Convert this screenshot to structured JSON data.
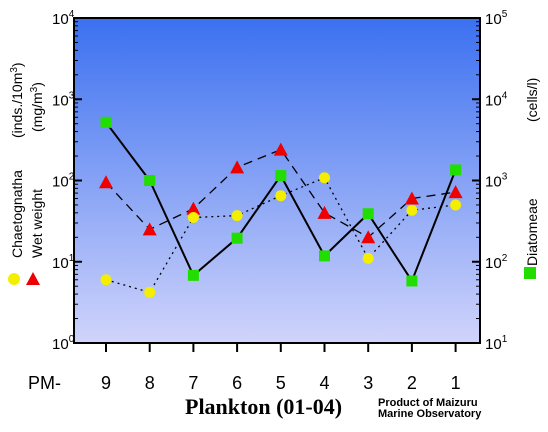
{
  "chart_data": {
    "type": "line",
    "title": "Plankton (01-04)",
    "credit": [
      "Product of Maizuru",
      "Marine Observatory"
    ],
    "x_prefix": "PM-",
    "categories": [
      "9",
      "8",
      "7",
      "6",
      "5",
      "4",
      "3",
      "2",
      "1"
    ],
    "left_axis": {
      "scale": "log",
      "range": [
        1,
        10000
      ],
      "ticks": [
        {
          "base": "10",
          "exp": "0"
        },
        {
          "base": "10",
          "exp": "1"
        },
        {
          "base": "10",
          "exp": "2"
        },
        {
          "base": "10",
          "exp": "3"
        },
        {
          "base": "10",
          "exp": "4"
        }
      ],
      "unit_label_1": "(inds./10m",
      "unit_label_1_sup": "3",
      "unit_label_1_end": ")",
      "unit_label_2": "(mg/m",
      "unit_label_2_sup": "3",
      "unit_label_2_end": ")"
    },
    "right_axis": {
      "scale": "log",
      "range": [
        10,
        100000
      ],
      "ticks": [
        {
          "base": "10",
          "exp": "1"
        },
        {
          "base": "10",
          "exp": "2"
        },
        {
          "base": "10",
          "exp": "3"
        },
        {
          "base": "10",
          "exp": "4"
        },
        {
          "base": "10",
          "exp": "5"
        }
      ],
      "unit_label": "(cells/l)"
    },
    "series": [
      {
        "name": "Chaetognatha",
        "axis": "left",
        "marker": "circle",
        "color": "#f4ee00",
        "line_style": "dotted",
        "values": [
          6,
          4.2,
          35,
          37,
          65,
          108,
          11,
          43,
          50
        ]
      },
      {
        "name": "Wet weight",
        "axis": "left",
        "marker": "triangle",
        "color": "#ee0000",
        "line_style": "dashed",
        "values": [
          95,
          25,
          45,
          145,
          240,
          40,
          20,
          60,
          72
        ]
      },
      {
        "name": "Diatomeae",
        "axis": "right",
        "marker": "square",
        "color": "#22dd00",
        "line_style": "solid",
        "values": [
          5200,
          1000,
          68,
          195,
          1150,
          118,
          390,
          58,
          1350
        ]
      }
    ],
    "colors": {
      "background_top": "#3b70f0",
      "background_bottom": "#d0d4fb"
    },
    "grid": false
  }
}
